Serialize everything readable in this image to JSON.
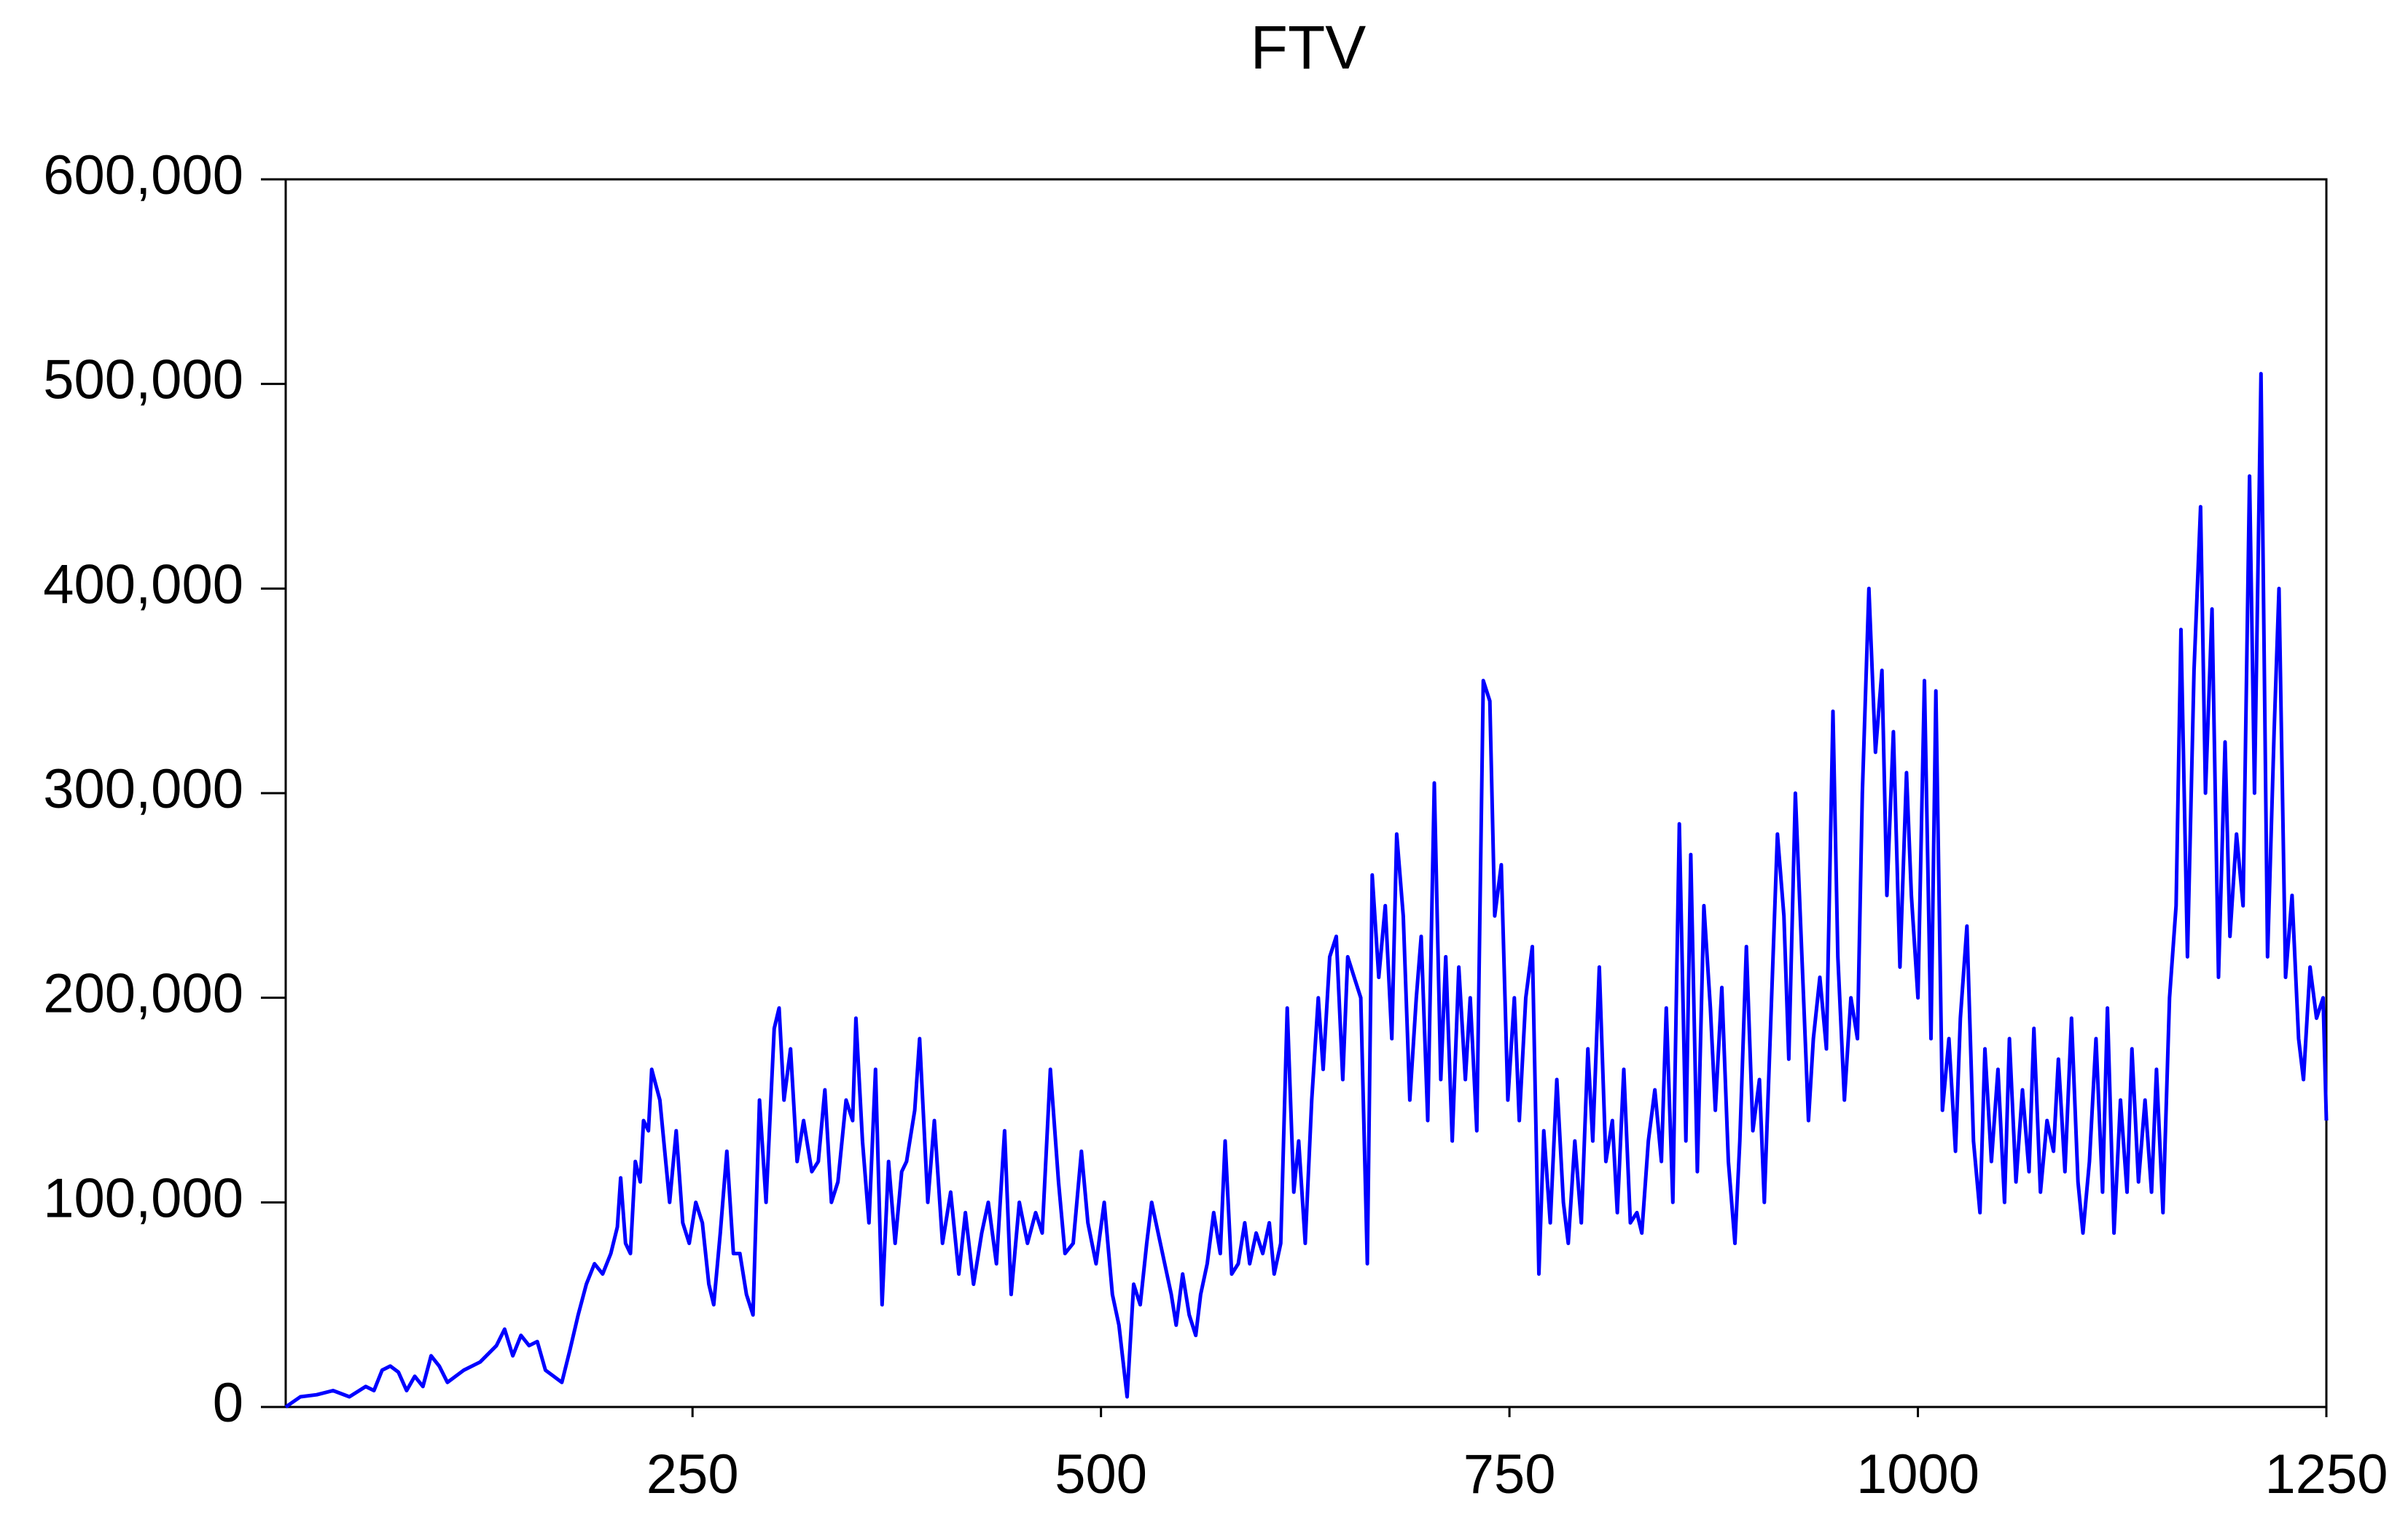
{
  "chart_data": {
    "type": "line",
    "title": "FTV",
    "color": "#0000ff",
    "xlim": [
      1,
      1250
    ],
    "xticks": [
      250,
      500,
      750,
      1000,
      1250
    ],
    "ylim": [
      0,
      600000
    ],
    "yticks": [
      0,
      {
        "value": 100000,
        "label": "100,000"
      },
      {
        "value": 200000,
        "label": "200,000"
      },
      {
        "value": 300000,
        "label": "300,000"
      },
      {
        "value": 400000,
        "label": "400,000"
      },
      {
        "value": 500000,
        "label": "500,000"
      },
      {
        "value": 600000,
        "label": "600,000"
      }
    ],
    "x": [
      1,
      10,
      20,
      30,
      40,
      50,
      55,
      60,
      65,
      70,
      75,
      80,
      85,
      90,
      95,
      100,
      110,
      120,
      130,
      135,
      140,
      145,
      150,
      155,
      160,
      165,
      170,
      175,
      180,
      185,
      190,
      195,
      200,
      204,
      206,
      209,
      212,
      215,
      218,
      220,
      223,
      225,
      230,
      233,
      236,
      240,
      244,
      248,
      252,
      256,
      260,
      263,
      267,
      271,
      275,
      279,
      283,
      287,
      291,
      295,
      300,
      303,
      306,
      310,
      314,
      318,
      323,
      327,
      331,
      335,
      339,
      344,
      348,
      350,
      354,
      358,
      362,
      366,
      370,
      374,
      378,
      381,
      386,
      389,
      394,
      398,
      403,
      408,
      413,
      417,
      422,
      427,
      431,
      436,
      441,
      445,
      450,
      455,
      460,
      464,
      469,
      474,
      478,
      483,
      488,
      492,
      497,
      502,
      507,
      511,
      516,
      520,
      524,
      528,
      531,
      535,
      539,
      543,
      546,
      550,
      554,
      558,
      561,
      565,
      569,
      573,
      576,
      580,
      584,
      588,
      591,
      595,
      599,
      603,
      606,
      610,
      614,
      618,
      621,
      625,
      629,
      633,
      636,
      640,
      644,
      648,
      651,
      655,
      659,
      663,
      666,
      670,
      674,
      678,
      681,
      685,
      689,
      693,
      696,
      700,
      704,
      708,
      711,
      715,
      719,
      723,
      726,
      730,
      734,
      738,
      741,
      745,
      749,
      753,
      756,
      760,
      764,
      768,
      771,
      775,
      779,
      783,
      786,
      790,
      794,
      798,
      801,
      805,
      809,
      813,
      816,
      820,
      824,
      828,
      831,
      835,
      839,
      843,
      846,
      850,
      854,
      858,
      861,
      865,
      869,
      873,
      876,
      880,
      884,
      888,
      891,
      895,
      899,
      903,
      906,
      910,
      914,
      918,
      921,
      925,
      929,
      933,
      936,
      940,
      944,
      948,
      951,
      955,
      959,
      963,
      966,
      970,
      974,
      978,
      981,
      985,
      989,
      993,
      996,
      1000,
      1004,
      1008,
      1011,
      1015,
      1019,
      1023,
      1026,
      1030,
      1034,
      1038,
      1041,
      1045,
      1049,
      1053,
      1056,
      1060,
      1064,
      1068,
      1071,
      1075,
      1079,
      1083,
      1086,
      1090,
      1094,
      1098,
      1101,
      1105,
      1109,
      1113,
      1116,
      1120,
      1124,
      1128,
      1131,
      1135,
      1139,
      1143,
      1146,
      1150,
      1154,
      1158,
      1161,
      1165,
      1169,
      1173,
      1176,
      1180,
      1184,
      1188,
      1191,
      1195,
      1199,
      1203,
      1206,
      1210,
      1214,
      1218,
      1221,
      1225,
      1229,
      1233,
      1236,
      1240,
      1244,
      1248,
      1250
    ],
    "values": [
      0,
      5000,
      6000,
      8000,
      5000,
      10000,
      8000,
      18000,
      20000,
      17000,
      8000,
      15000,
      10000,
      25000,
      20000,
      12000,
      18000,
      22000,
      30000,
      38000,
      25000,
      35000,
      30000,
      32000,
      18000,
      15000,
      12000,
      28000,
      45000,
      60000,
      70000,
      65000,
      75000,
      88000,
      112000,
      80000,
      75000,
      120000,
      110000,
      140000,
      135000,
      165000,
      150000,
      125000,
      100000,
      135000,
      90000,
      80000,
      100000,
      90000,
      60000,
      50000,
      85000,
      125000,
      75000,
      75000,
      55000,
      45000,
      150000,
      100000,
      185000,
      195000,
      150000,
      175000,
      120000,
      140000,
      115000,
      120000,
      155000,
      100000,
      110000,
      150000,
      140000,
      190000,
      130000,
      90000,
      165000,
      50000,
      120000,
      80000,
      115000,
      120000,
      145000,
      180000,
      100000,
      140000,
      80000,
      105000,
      65000,
      95000,
      60000,
      85000,
      100000,
      70000,
      135000,
      55000,
      100000,
      80000,
      95000,
      85000,
      165000,
      110000,
      75000,
      80000,
      125000,
      90000,
      70000,
      100000,
      55000,
      40000,
      5000,
      60000,
      50000,
      80000,
      100000,
      85000,
      70000,
      55000,
      40000,
      65000,
      45000,
      35000,
      55000,
      70000,
      95000,
      75000,
      130000,
      65000,
      70000,
      90000,
      70000,
      85000,
      75000,
      90000,
      65000,
      80000,
      195000,
      105000,
      130000,
      80000,
      150000,
      200000,
      165000,
      220000,
      230000,
      160000,
      220000,
      210000,
      200000,
      70000,
      260000,
      210000,
      245000,
      180000,
      280000,
      240000,
      150000,
      200000,
      230000,
      140000,
      305000,
      160000,
      220000,
      130000,
      215000,
      160000,
      200000,
      135000,
      355000,
      345000,
      240000,
      265000,
      150000,
      200000,
      140000,
      200000,
      225000,
      65000,
      135000,
      90000,
      160000,
      100000,
      80000,
      130000,
      90000,
      175000,
      130000,
      215000,
      120000,
      140000,
      95000,
      165000,
      90000,
      95000,
      85000,
      130000,
      155000,
      120000,
      195000,
      100000,
      285000,
      130000,
      270000,
      115000,
      245000,
      195000,
      145000,
      205000,
      120000,
      80000,
      130000,
      225000,
      135000,
      160000,
      100000,
      190000,
      280000,
      240000,
      170000,
      300000,
      220000,
      140000,
      180000,
      210000,
      175000,
      340000,
      220000,
      150000,
      200000,
      180000,
      300000,
      400000,
      320000,
      360000,
      250000,
      330000,
      215000,
      310000,
      250000,
      200000,
      355000,
      180000,
      350000,
      145000,
      180000,
      125000,
      190000,
      235000,
      130000,
      95000,
      175000,
      120000,
      165000,
      100000,
      180000,
      110000,
      155000,
      115000,
      185000,
      105000,
      140000,
      125000,
      170000,
      115000,
      190000,
      110000,
      85000,
      120000,
      180000,
      105000,
      195000,
      85000,
      150000,
      105000,
      175000,
      110000,
      150000,
      105000,
      165000,
      95000,
      200000,
      245000,
      380000,
      220000,
      360000,
      440000,
      300000,
      390000,
      210000,
      325000,
      230000,
      280000,
      245000,
      455000,
      300000,
      505000,
      220000,
      330000,
      400000,
      210000,
      250000,
      180000,
      160000,
      215000,
      190000,
      200000,
      140000
    ]
  }
}
